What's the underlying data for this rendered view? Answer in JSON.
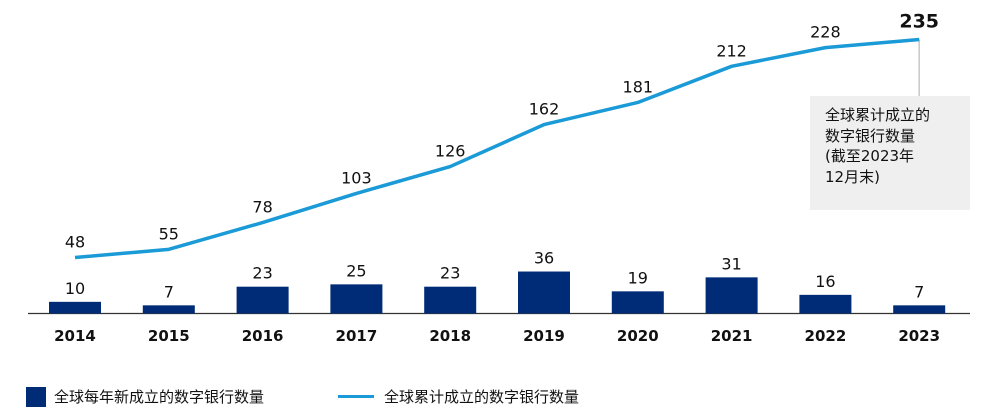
{
  "colors": {
    "bar": "#002c77",
    "line": "#1a9ad6",
    "axis": "#333333",
    "leader": "#c8c8c8"
  },
  "chart_data": {
    "type": "bar+line",
    "categories": [
      "2014",
      "2015",
      "2016",
      "2017",
      "2018",
      "2019",
      "2020",
      "2021",
      "2022",
      "2023"
    ],
    "series": [
      {
        "name": "全球每年新成立的数字银行数量",
        "type": "bar",
        "values": [
          10,
          7,
          23,
          25,
          23,
          36,
          19,
          31,
          16,
          7
        ]
      },
      {
        "name": "全球累计成立的数字银行数量",
        "type": "line",
        "values": [
          48,
          55,
          78,
          103,
          126,
          162,
          181,
          212,
          228,
          235
        ]
      }
    ],
    "legend_position": "bottom-left",
    "grid": false,
    "annotation": {
      "target": "2023",
      "lines": [
        "全球累计成立的",
        "数字银行数量",
        "(截至2023年",
        "12月末)"
      ]
    }
  }
}
